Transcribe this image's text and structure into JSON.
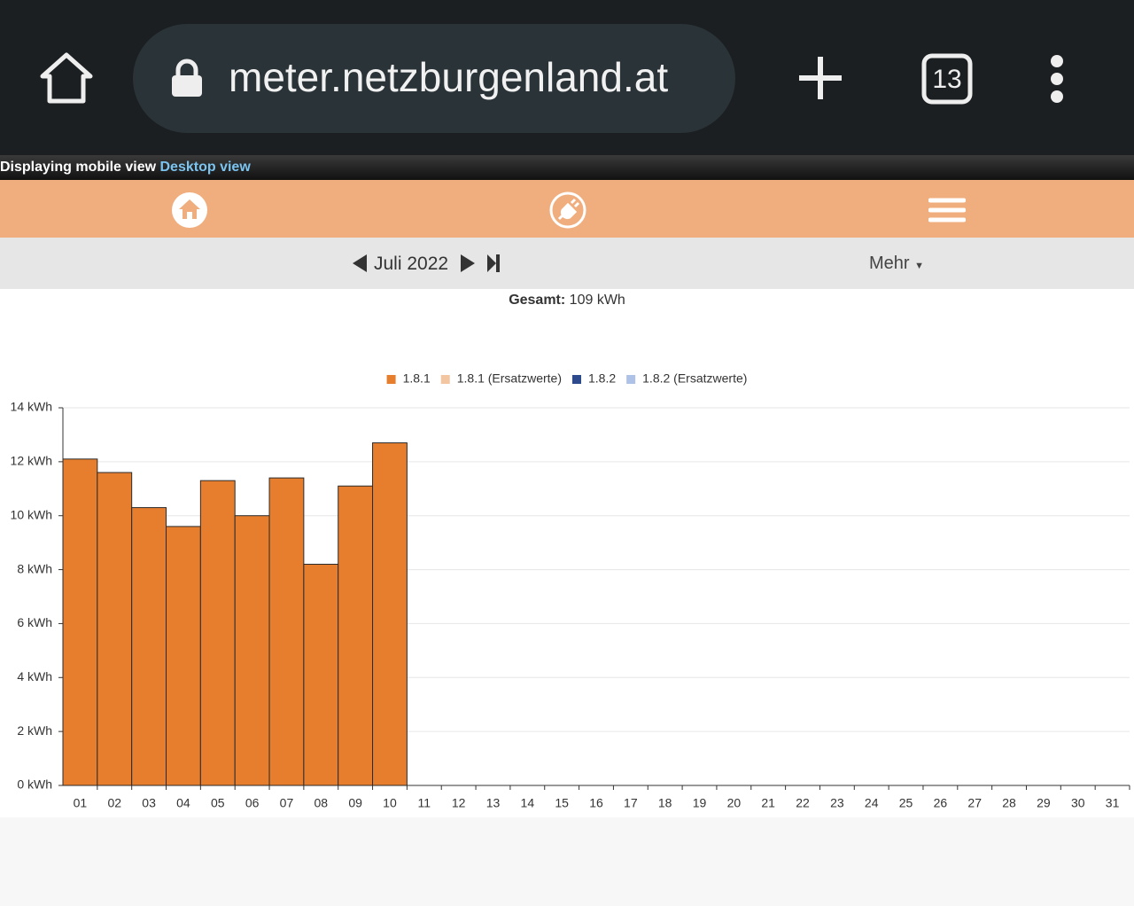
{
  "browser": {
    "url": "meter.netzburgenland.at",
    "tabs": "13"
  },
  "banner": {
    "text": "Displaying mobile view",
    "link": "Desktop view"
  },
  "period": {
    "label": "Juli 2022",
    "more": "Mehr"
  },
  "summary": {
    "label": "Gesamt:",
    "value": "109 kWh"
  },
  "chart_data": {
    "type": "bar",
    "categories": [
      "01",
      "02",
      "03",
      "04",
      "05",
      "06",
      "07",
      "08",
      "09",
      "10",
      "11",
      "12",
      "13",
      "14",
      "15",
      "16",
      "17",
      "18",
      "19",
      "20",
      "21",
      "22",
      "23",
      "24",
      "25",
      "26",
      "27",
      "28",
      "29",
      "30",
      "31"
    ],
    "series": [
      {
        "name": "1.8.1",
        "color": "#e67e2e",
        "values": [
          12.1,
          11.6,
          10.3,
          9.6,
          11.3,
          10.0,
          11.4,
          8.2,
          11.1,
          12.7,
          null,
          null,
          null,
          null,
          null,
          null,
          null,
          null,
          null,
          null,
          null,
          null,
          null,
          null,
          null,
          null,
          null,
          null,
          null,
          null,
          null
        ]
      },
      {
        "name": "1.8.1 (Ersatzwerte)",
        "color": "#f3c6a2",
        "values": [
          null,
          null,
          null,
          null,
          null,
          null,
          null,
          null,
          null,
          null,
          null,
          null,
          null,
          null,
          null,
          null,
          null,
          null,
          null,
          null,
          null,
          null,
          null,
          null,
          null,
          null,
          null,
          null,
          null,
          null,
          null
        ]
      },
      {
        "name": "1.8.2",
        "color": "#2c4a8c",
        "values": [
          null,
          null,
          null,
          null,
          null,
          null,
          null,
          null,
          null,
          null,
          null,
          null,
          null,
          null,
          null,
          null,
          null,
          null,
          null,
          null,
          null,
          null,
          null,
          null,
          null,
          null,
          null,
          null,
          null,
          null,
          null
        ]
      },
      {
        "name": "1.8.2 (Ersatzwerte)",
        "color": "#adc2e6",
        "values": [
          null,
          null,
          null,
          null,
          null,
          null,
          null,
          null,
          null,
          null,
          null,
          null,
          null,
          null,
          null,
          null,
          null,
          null,
          null,
          null,
          null,
          null,
          null,
          null,
          null,
          null,
          null,
          null,
          null,
          null,
          null
        ]
      }
    ],
    "ylim": [
      0,
      14
    ],
    "yticks": [
      {
        "value": 0,
        "label": "0 kWh"
      },
      {
        "value": 2,
        "label": "2 kWh"
      },
      {
        "value": 4,
        "label": "4 kWh"
      },
      {
        "value": 6,
        "label": "6 kWh"
      },
      {
        "value": 8,
        "label": "8 kWh"
      },
      {
        "value": 10,
        "label": "10 kWh"
      },
      {
        "value": 12,
        "label": "12 kWh"
      },
      {
        "value": 14,
        "label": "14 kWh"
      }
    ],
    "grid": true,
    "legend": "top"
  }
}
